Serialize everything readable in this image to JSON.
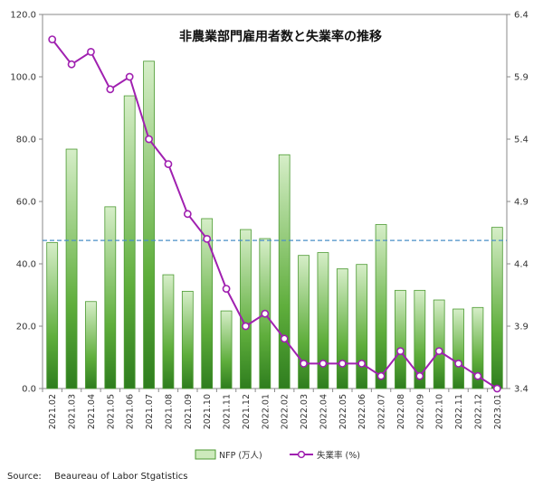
{
  "chart_data": {
    "type": "bar",
    "title": "非農業部門雇用者数と失業率の推移",
    "categories": [
      "2021.02",
      "2021.03",
      "2021.04",
      "2021.05",
      "2021.06",
      "2021.07",
      "2021.08",
      "2021.09",
      "2021.10",
      "2021.11",
      "2021.12",
      "2022.01",
      "2022.02",
      "2022.03",
      "2022.04",
      "2022.05",
      "2022.06",
      "2022.07",
      "2022.08",
      "2022.09",
      "2022.10",
      "2022.11",
      "2022.12",
      "2023.01"
    ],
    "series": [
      {
        "name": "NFP (万人)",
        "type": "bar",
        "axis": "left",
        "values": [
          46.8,
          76.8,
          27.9,
          58.3,
          93.9,
          105.0,
          36.5,
          31.2,
          54.5,
          24.9,
          51.0,
          48.1,
          75.0,
          42.7,
          43.6,
          38.4,
          39.8,
          52.6,
          31.5,
          31.5,
          28.4,
          25.5,
          26.0,
          51.7
        ]
      },
      {
        "name": "失業率 (%)",
        "type": "line",
        "axis": "right",
        "values": [
          6.2,
          6.0,
          6.1,
          5.8,
          5.9,
          5.4,
          5.2,
          4.8,
          4.6,
          4.2,
          3.9,
          4.0,
          3.8,
          3.6,
          3.6,
          3.6,
          3.6,
          3.5,
          3.7,
          3.5,
          3.7,
          3.6,
          3.5,
          3.4
        ]
      }
    ],
    "y_left": {
      "min": 0,
      "max": 120,
      "ticks": [
        "0.0",
        "20.0",
        "40.0",
        "60.0",
        "80.0",
        "100.0",
        "120.0"
      ]
    },
    "y_right": {
      "min": 3.4,
      "max": 6.4,
      "ticks": [
        "3.4",
        "3.9",
        "4.4",
        "4.9",
        "5.4",
        "5.9",
        "6.4"
      ]
    },
    "reference_line": {
      "value": 47.5,
      "axis": "left",
      "style": "dashed"
    },
    "legend_position": "bottom",
    "grid": false,
    "colors": {
      "bar_dark": "#2e7d1e",
      "bar_mid": "#5fae3c",
      "bar_light": "#cdeabc",
      "bar_stroke": "#4c9a32",
      "line": "#a020b0",
      "marker_fill": "#ffffff",
      "reference": "#4a8fc7"
    }
  },
  "source": {
    "label": "Source:",
    "text": "Beaureau of Labor Stgatistics"
  }
}
